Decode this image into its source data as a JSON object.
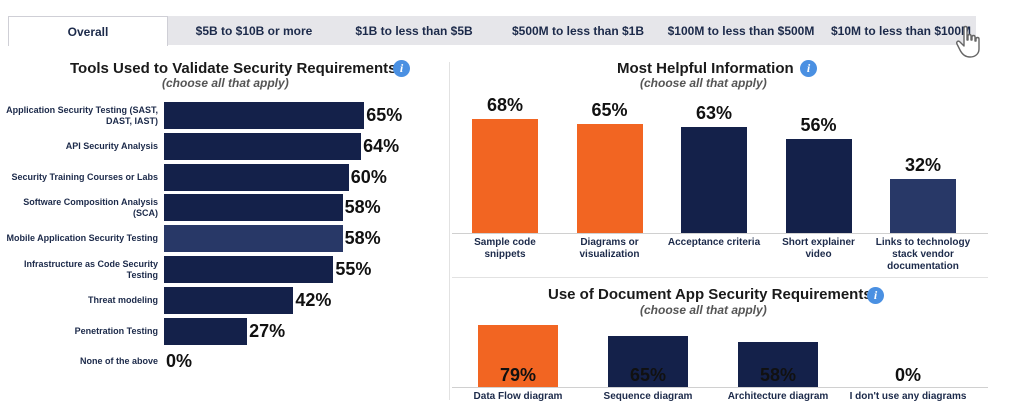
{
  "tabs": [
    {
      "label": "Overall",
      "active": true
    },
    {
      "label": "$5B to $10B or more",
      "active": false
    },
    {
      "label": "$1B to less than $5B",
      "active": false
    },
    {
      "label": "$500M to less than $1B",
      "active": false
    },
    {
      "label": "$100M to less than $500M",
      "active": false
    },
    {
      "label": "$10M to less than $100M",
      "active": false
    }
  ],
  "colors": {
    "navy": "#14214a",
    "orange": "#f26522",
    "slate": "#283867",
    "info": "#4a90e2"
  },
  "chart_data": [
    {
      "type": "bar",
      "orientation": "horizontal",
      "title": "Tools Used to Validate Security Requirements",
      "subtitle": "(choose all that apply)",
      "categories": [
        "Application Security Testing (SAST, DAST, IAST)",
        "API Security Analysis",
        "Security Training Courses or Labs",
        "Software Composition Analysis (SCA)",
        "Mobile Application Security Testing",
        "Infrastructure as Code Security Testing",
        "Threat modeling",
        "Penetration Testing",
        "None of the above"
      ],
      "values": [
        65,
        64,
        60,
        58,
        58,
        55,
        42,
        27,
        0
      ],
      "value_labels": [
        "65%",
        "64%",
        "60%",
        "58%",
        "58%",
        "55%",
        "42%",
        "27%",
        "0%"
      ],
      "highlighted_index": 4
    },
    {
      "type": "bar",
      "orientation": "vertical",
      "title": "Most Helpful Information",
      "subtitle": "(choose all that apply)",
      "categories": [
        "Sample code snippets",
        "Diagrams or visualization",
        "Acceptance criteria",
        "Short explainer video",
        "Links to technology stack vendor documentation"
      ],
      "values": [
        68,
        65,
        63,
        56,
        32
      ],
      "value_labels": [
        "68%",
        "65%",
        "63%",
        "56%",
        "32%"
      ],
      "bar_colors": [
        "#f26522",
        "#f26522",
        "#14214a",
        "#14214a",
        "#283867"
      ]
    },
    {
      "type": "bar",
      "orientation": "vertical",
      "title": "Use of Document App Security Requirements",
      "subtitle": "(choose all that apply)",
      "categories": [
        "Data Flow diagram",
        "Sequence diagram",
        "Architecture diagram",
        "I don't use any diagrams"
      ],
      "values": [
        79,
        65,
        58,
        0
      ],
      "value_labels": [
        "79%",
        "65%",
        "58%",
        "0%"
      ],
      "bar_colors": [
        "#f26522",
        "#14214a",
        "#14214a",
        "#14214a"
      ]
    }
  ]
}
